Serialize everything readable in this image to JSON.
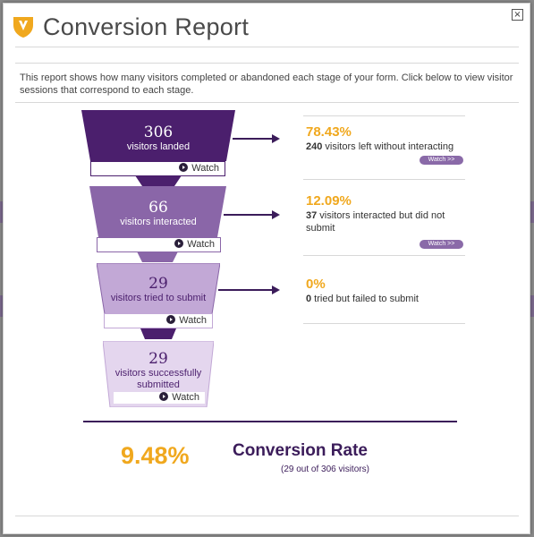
{
  "dialog": {
    "title": "Conversion Report",
    "close_label": "×",
    "intro": "This report shows how many visitors completed or abandoned each stage of your form. Click below to view visitor sessions that correspond to each stage."
  },
  "funnel": {
    "stages": [
      {
        "count": "306",
        "label": "visitors landed",
        "watch_label": "Watch"
      },
      {
        "count": "66",
        "label": "visitors interacted",
        "watch_label": "Watch"
      },
      {
        "count": "29",
        "label": "visitors tried to submit",
        "watch_label": "Watch"
      },
      {
        "count": "29",
        "label": "visitors successfully submitted",
        "watch_label": "Watch"
      }
    ],
    "dropoffs": [
      {
        "percent": "78.43%",
        "number": "240",
        "text": " visitors left without interacting",
        "watch_label": "Watch >>"
      },
      {
        "percent": "12.09%",
        "number": "37",
        "text": " visitors interacted but did not submit",
        "watch_label": "Watch >>"
      },
      {
        "percent": "0%",
        "number": "0",
        "text": " tried but failed to submit"
      }
    ]
  },
  "summary": {
    "rate": "9.48%",
    "title": "Conversion Rate",
    "detail": "(29 out of 306 visitors)"
  },
  "colors": {
    "stage_1": "#4b1f6d",
    "stage_2": "#8a66a8",
    "stage_3": "#c2a8d6",
    "stage_4": "#e4d6ee",
    "accent": "#f0a81e",
    "text_dark": "#3b1c5a"
  }
}
